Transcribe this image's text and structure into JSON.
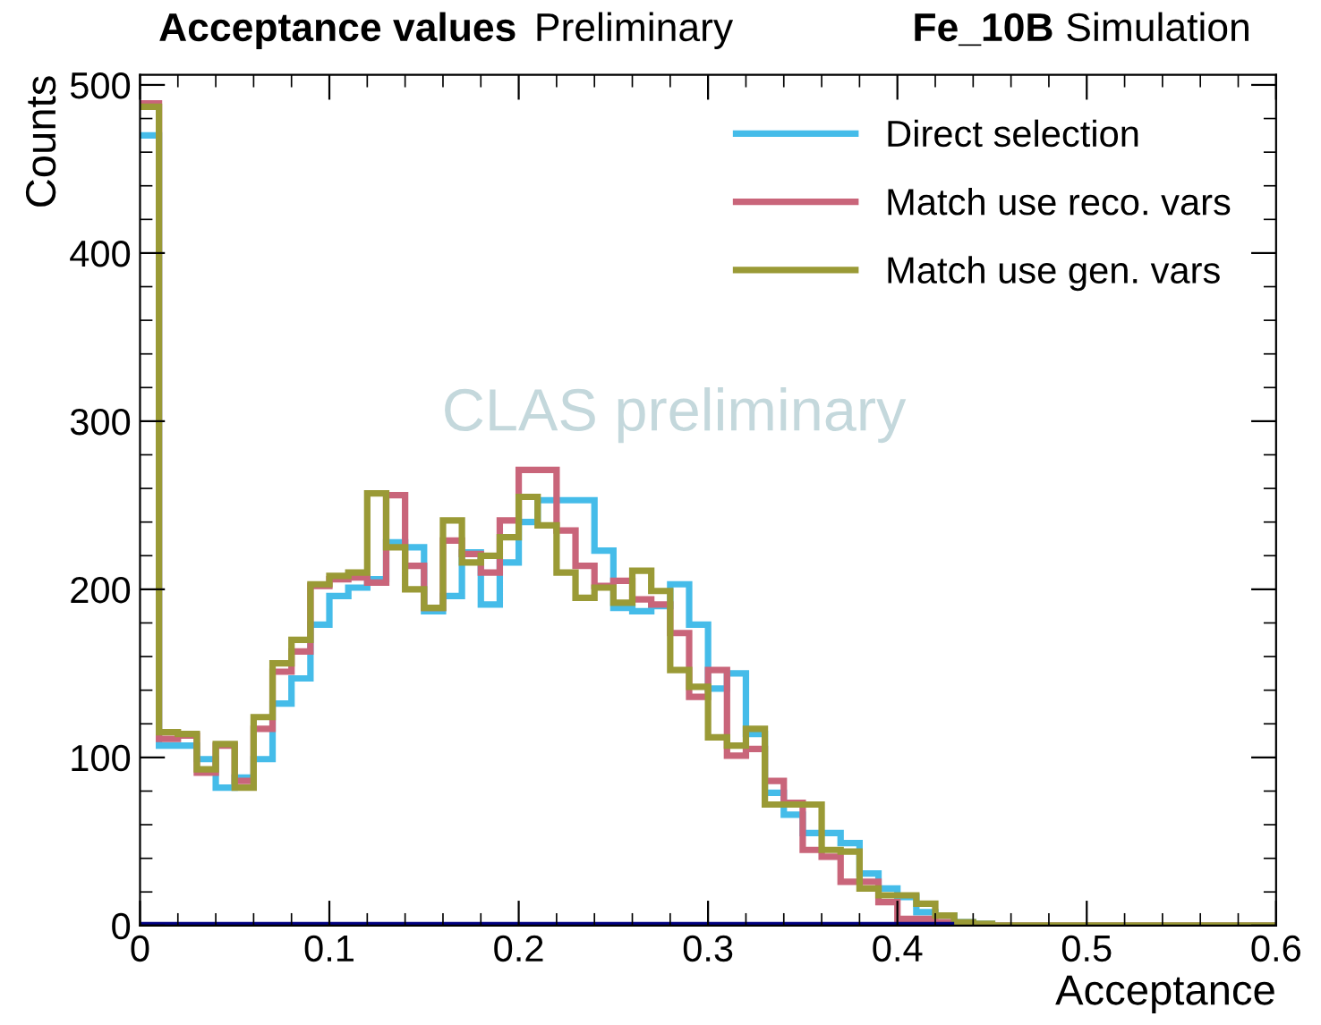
{
  "chart_data": {
    "type": "histogram",
    "title": "Acceptance values",
    "subtitle": "Preliminary",
    "xlabel": "Acceptance",
    "ylabel": "Counts",
    "annotations": [
      "Fe_10B",
      "Simulation",
      "CLAS preliminary"
    ],
    "bins": [
      0,
      0.01,
      0.02,
      0.03,
      0.04,
      0.05,
      0.06,
      0.07,
      0.08,
      0.09,
      0.1,
      0.11,
      0.12,
      0.13,
      0.14,
      0.15,
      0.16,
      0.17,
      0.18,
      0.19,
      0.2,
      0.21,
      0.22,
      0.23,
      0.24,
      0.25,
      0.26,
      0.27,
      0.28,
      0.29,
      0.3,
      0.31,
      0.32,
      0.33,
      0.34,
      0.35,
      0.36,
      0.37,
      0.38,
      0.39,
      0.4,
      0.41,
      0.42,
      0.43,
      0.44,
      0.45,
      0.46,
      0.47,
      0.48,
      0.49,
      0.5,
      0.51,
      0.52,
      0.53,
      0.54,
      0.55,
      0.56,
      0.57,
      0.58,
      0.59,
      0.6
    ],
    "series": [
      {
        "name": "Direct selection",
        "color": "#45bce9",
        "values": [
          470,
          107,
          107,
          99,
          82,
          88,
          99,
          132,
          147,
          179,
          196,
          201,
          206,
          228,
          225,
          187,
          196,
          222,
          191,
          216,
          240,
          253,
          253,
          253,
          223,
          189,
          187,
          190,
          203,
          179,
          141,
          150,
          114,
          79,
          66,
          55,
          55,
          49,
          31,
          22,
          17,
          8,
          6,
          2,
          1,
          0,
          0,
          0,
          0,
          0,
          0,
          0,
          0,
          0,
          0,
          0,
          0,
          0,
          0,
          0
        ]
      },
      {
        "name": "Match use reco. vars",
        "color": "#c9657a",
        "values": [
          489,
          111,
          113,
          91,
          107,
          86,
          117,
          151,
          163,
          202,
          206,
          207,
          204,
          256,
          214,
          189,
          229,
          221,
          210,
          241,
          271,
          271,
          235,
          214,
          202,
          205,
          194,
          191,
          174,
          136,
          152,
          101,
          105,
          86,
          73,
          45,
          41,
          26,
          26,
          14,
          4,
          4,
          2,
          1,
          0,
          0,
          0,
          0,
          0,
          0,
          0,
          0,
          0,
          0,
          0,
          0,
          0,
          0,
          0,
          0
        ]
      },
      {
        "name": "Match use gen. vars",
        "color": "#9a9a36",
        "values": [
          487,
          115,
          114,
          93,
          108,
          82,
          124,
          156,
          170,
          203,
          208,
          210,
          257,
          225,
          200,
          189,
          241,
          216,
          220,
          231,
          255,
          238,
          210,
          195,
          201,
          192,
          211,
          199,
          152,
          142,
          112,
          107,
          117,
          72,
          72,
          72,
          45,
          44,
          22,
          18,
          18,
          13,
          6,
          2,
          1,
          0,
          0,
          0,
          0,
          0,
          0,
          0,
          0,
          0,
          0,
          0,
          0,
          0,
          0,
          0
        ]
      },
      {
        "color": "#000080",
        "bins": [
          0,
          0.01,
          0.02,
          0.03,
          0.04,
          0.05,
          0.06,
          0.07,
          0.08,
          0.09,
          0.1,
          0.11,
          0.12,
          0.13,
          0.14,
          0.15,
          0.16,
          0.17,
          0.18,
          0.19,
          0.2,
          0.21,
          0.22,
          0.23,
          0.24,
          0.25,
          0.26,
          0.27,
          0.28,
          0.29,
          0.3,
          0.31,
          0.32,
          0.33,
          0.34,
          0.35,
          0.36,
          0.37,
          0.38,
          0.39,
          0.4,
          0.41,
          0.42,
          0.43
        ],
        "values": [
          0,
          0,
          0,
          0,
          0,
          0,
          0,
          0,
          0,
          0,
          0,
          0,
          0,
          0,
          0,
          0,
          0,
          0,
          0,
          0,
          0,
          0,
          0,
          0,
          0,
          0,
          0,
          0,
          0,
          0,
          0,
          0,
          0,
          0,
          0,
          0,
          0,
          0,
          0,
          0,
          0,
          0,
          0
        ]
      }
    ],
    "xlim": [
      0,
      0.6
    ],
    "xticks": [
      0,
      0.1,
      0.2,
      0.3,
      0.4,
      0.5,
      0.6
    ],
    "ylim": [
      0,
      506
    ],
    "yticks": [
      0,
      100,
      200,
      300,
      400,
      500
    ],
    "grid": false,
    "legend": "top right"
  }
}
